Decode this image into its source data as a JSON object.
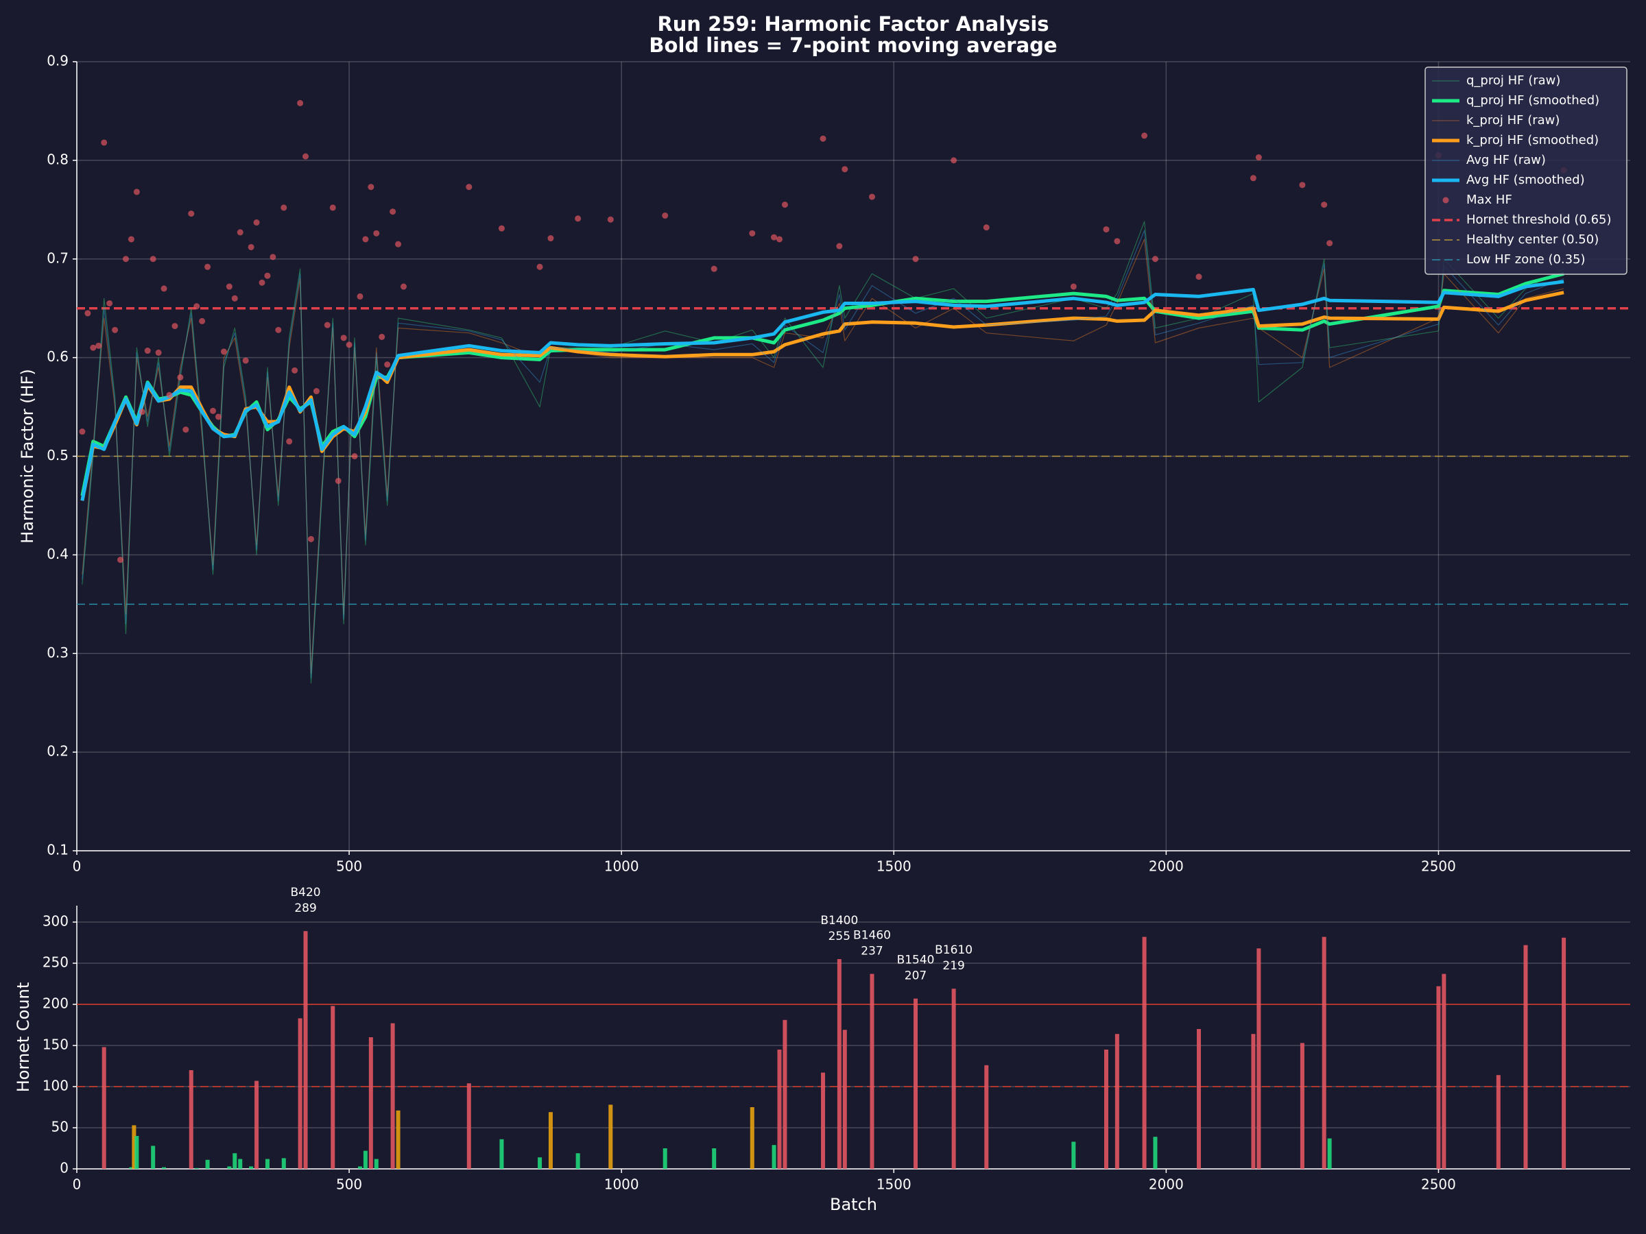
{
  "chart_data": [
    {
      "type": "line",
      "title": "Run 259: Harmonic Factor Analysis",
      "subtitle": "Bold lines = 7-point moving average",
      "ylabel": "Harmonic Factor (HF)",
      "xlim": [
        0,
        2852
      ],
      "ylim": [
        0.1,
        0.9
      ],
      "xticks": [
        0,
        500,
        1000,
        1500,
        2000,
        2500
      ],
      "yticks": [
        0.1,
        0.2,
        0.3,
        0.4,
        0.5,
        0.6,
        0.7,
        0.8,
        0.9
      ],
      "grid": "both",
      "legend": "upper right",
      "x": [
        10,
        30,
        50,
        70,
        90,
        110,
        130,
        150,
        170,
        190,
        210,
        230,
        250,
        270,
        290,
        310,
        330,
        350,
        370,
        390,
        410,
        430,
        450,
        470,
        490,
        510,
        530,
        550,
        570,
        590,
        720,
        780,
        850,
        870,
        920,
        980,
        1080,
        1170,
        1240,
        1280,
        1300,
        1370,
        1400,
        1410,
        1460,
        1540,
        1610,
        1670,
        1830,
        1890,
        1910,
        1960,
        1980,
        2060,
        2160,
        2170,
        2250,
        2290,
        2300,
        2500,
        2510,
        2610,
        2660,
        2730
      ],
      "series": [
        {
          "name": "q_proj HF (raw)",
          "color": "#2ecc71",
          "linewidth": 1.2,
          "opacity": 0.45,
          "values": [
            0.37,
            0.5,
            0.66,
            0.56,
            0.32,
            0.61,
            0.53,
            0.6,
            0.5,
            0.58,
            0.65,
            0.53,
            0.38,
            0.59,
            0.63,
            0.56,
            0.4,
            0.59,
            0.45,
            0.62,
            0.69,
            0.27,
            0.46,
            0.64,
            0.33,
            0.62,
            0.41,
            0.6,
            0.45,
            0.64,
            0.628,
            0.62,
            0.55,
            0.61,
            0.61,
            0.61,
            0.627,
            0.615,
            0.628,
            0.6,
            0.64,
            0.59,
            0.673,
            0.64,
            0.685,
            0.66,
            0.67,
            0.64,
            0.66,
            0.65,
            0.665,
            0.738,
            0.63,
            0.64,
            0.665,
            0.555,
            0.59,
            0.7,
            0.61,
            0.627,
            0.7,
            0.64,
            0.67,
            0.69
          ]
        },
        {
          "name": "q_proj HF (smoothed)",
          "color": "#1de987",
          "linewidth": 5,
          "opacity": 1,
          "values": [
            0.46,
            0.515,
            0.51,
            0.535,
            0.56,
            0.535,
            0.575,
            0.558,
            0.56,
            0.565,
            0.562,
            0.545,
            0.53,
            0.52,
            0.522,
            0.545,
            0.555,
            0.527,
            0.537,
            0.56,
            0.548,
            0.555,
            0.51,
            0.525,
            0.53,
            0.52,
            0.54,
            0.58,
            0.58,
            0.6,
            0.605,
            0.6,
            0.598,
            0.607,
            0.608,
            0.608,
            0.608,
            0.62,
            0.62,
            0.615,
            0.628,
            0.638,
            0.645,
            0.65,
            0.653,
            0.66,
            0.657,
            0.657,
            0.665,
            0.662,
            0.658,
            0.66,
            0.647,
            0.64,
            0.647,
            0.63,
            0.628,
            0.637,
            0.634,
            0.652,
            0.668,
            0.664,
            0.675,
            0.685
          ]
        },
        {
          "name": "k_proj HF (raw)",
          "color": "#e67e22",
          "linewidth": 1.2,
          "opacity": 0.45,
          "values": [
            0.38,
            0.51,
            0.64,
            0.55,
            0.34,
            0.6,
            0.54,
            0.59,
            0.51,
            0.59,
            0.64,
            0.52,
            0.39,
            0.6,
            0.62,
            0.55,
            0.41,
            0.58,
            0.46,
            0.61,
            0.68,
            0.28,
            0.47,
            0.63,
            0.34,
            0.61,
            0.42,
            0.61,
            0.46,
            0.63,
            0.625,
            0.615,
            0.6,
            0.61,
            0.605,
            0.6,
            0.6,
            0.6,
            0.6,
            0.59,
            0.625,
            0.62,
            0.655,
            0.617,
            0.66,
            0.63,
            0.65,
            0.625,
            0.617,
            0.633,
            0.655,
            0.72,
            0.615,
            0.63,
            0.64,
            0.63,
            0.6,
            0.69,
            0.59,
            0.64,
            0.685,
            0.625,
            0.66,
            0.67
          ]
        },
        {
          "name": "k_proj HF (smoothed)",
          "color": "#ff9f1c",
          "linewidth": 5,
          "opacity": 1,
          "values": [
            0.455,
            0.51,
            0.508,
            0.532,
            0.558,
            0.532,
            0.572,
            0.556,
            0.558,
            0.57,
            0.57,
            0.548,
            0.528,
            0.522,
            0.52,
            0.548,
            0.55,
            0.535,
            0.535,
            0.57,
            0.545,
            0.56,
            0.505,
            0.52,
            0.528,
            0.525,
            0.545,
            0.585,
            0.575,
            0.6,
            0.608,
            0.603,
            0.602,
            0.61,
            0.606,
            0.603,
            0.601,
            0.603,
            0.603,
            0.606,
            0.613,
            0.624,
            0.627,
            0.634,
            0.636,
            0.635,
            0.631,
            0.633,
            0.64,
            0.639,
            0.637,
            0.638,
            0.648,
            0.643,
            0.65,
            0.632,
            0.634,
            0.641,
            0.64,
            0.639,
            0.651,
            0.647,
            0.658,
            0.666
          ]
        },
        {
          "name": "Avg HF (raw)",
          "color": "#3498db",
          "linewidth": 1.2,
          "opacity": 0.45,
          "values": [
            0.375,
            0.505,
            0.65,
            0.555,
            0.33,
            0.605,
            0.535,
            0.595,
            0.505,
            0.585,
            0.645,
            0.525,
            0.385,
            0.595,
            0.625,
            0.555,
            0.405,
            0.585,
            0.455,
            0.615,
            0.685,
            0.275,
            0.465,
            0.635,
            0.335,
            0.615,
            0.415,
            0.605,
            0.455,
            0.635,
            0.627,
            0.618,
            0.575,
            0.61,
            0.608,
            0.605,
            0.614,
            0.608,
            0.614,
            0.595,
            0.633,
            0.605,
            0.664,
            0.628,
            0.673,
            0.645,
            0.66,
            0.633,
            0.638,
            0.642,
            0.66,
            0.729,
            0.623,
            0.635,
            0.653,
            0.593,
            0.595,
            0.695,
            0.6,
            0.634,
            0.693,
            0.633,
            0.665,
            0.68
          ]
        },
        {
          "name": "Avg HF (smoothed)",
          "color": "#1ab8f0",
          "linewidth": 5,
          "opacity": 1,
          "values": [
            0.455,
            0.512,
            0.507,
            0.535,
            0.558,
            0.533,
            0.574,
            0.556,
            0.56,
            0.567,
            0.566,
            0.545,
            0.528,
            0.52,
            0.521,
            0.546,
            0.552,
            0.53,
            0.535,
            0.565,
            0.546,
            0.557,
            0.507,
            0.522,
            0.53,
            0.522,
            0.55,
            0.585,
            0.578,
            0.602,
            0.612,
            0.607,
            0.605,
            0.615,
            0.613,
            0.612,
            0.614,
            0.615,
            0.62,
            0.624,
            0.636,
            0.646,
            0.648,
            0.655,
            0.655,
            0.657,
            0.653,
            0.652,
            0.66,
            0.656,
            0.653,
            0.656,
            0.664,
            0.662,
            0.669,
            0.648,
            0.654,
            0.66,
            0.658,
            0.656,
            0.666,
            0.662,
            0.672,
            0.677
          ]
        },
        {
          "name": "Max HF",
          "type": "scatter",
          "color": "#e05560",
          "opacity": 0.7,
          "x": [
            10,
            20,
            30,
            40,
            50,
            60,
            70,
            80,
            90,
            100,
            110,
            120,
            130,
            140,
            150,
            160,
            170,
            180,
            190,
            200,
            210,
            220,
            230,
            240,
            250,
            260,
            270,
            280,
            290,
            300,
            310,
            320,
            330,
            340,
            350,
            360,
            370,
            380,
            390,
            400,
            410,
            420,
            430,
            440,
            460,
            470,
            480,
            490,
            500,
            510,
            520,
            530,
            540,
            550,
            560,
            570,
            580,
            590,
            600,
            720,
            780,
            850,
            870,
            920,
            980,
            1080,
            1170,
            1240,
            1280,
            1290,
            1300,
            1370,
            1400,
            1410,
            1460,
            1540,
            1610,
            1670,
            1830,
            1890,
            1910,
            1960,
            1980,
            2060,
            2160,
            2170,
            2250,
            2290,
            2300,
            2500,
            2730
          ],
          "values": [
            0.525,
            0.645,
            0.61,
            0.612,
            0.818,
            0.655,
            0.628,
            0.395,
            0.7,
            0.72,
            0.768,
            0.545,
            0.607,
            0.7,
            0.605,
            0.67,
            0.562,
            0.632,
            0.58,
            0.527,
            0.746,
            0.652,
            0.637,
            0.692,
            0.546,
            0.54,
            0.606,
            0.672,
            0.66,
            0.727,
            0.597,
            0.712,
            0.737,
            0.676,
            0.683,
            0.702,
            0.628,
            0.752,
            0.515,
            0.587,
            0.858,
            0.804,
            0.416,
            0.566,
            0.633,
            0.752,
            0.475,
            0.62,
            0.613,
            0.5,
            0.662,
            0.72,
            0.773,
            0.726,
            0.621,
            0.593,
            0.748,
            0.715,
            0.672,
            0.773,
            0.731,
            0.692,
            0.721,
            0.741,
            0.74,
            0.744,
            0.69,
            0.726,
            0.722,
            0.72,
            0.755,
            0.822,
            0.713,
            0.791,
            0.763,
            0.7,
            0.8,
            0.732,
            0.672,
            0.73,
            0.718,
            0.825,
            0.7,
            0.682,
            0.782,
            0.803,
            0.775,
            0.755,
            0.716,
            0.805,
            0.79
          ]
        }
      ],
      "reference_lines": [
        {
          "name": "Hornet threshold (0.65)",
          "value": 0.65,
          "color": "#e0404a",
          "linestyle": "dashed",
          "linewidth": 3.5
        },
        {
          "name": "Healthy center (0.50)",
          "value": 0.5,
          "color": "#b8963a",
          "linestyle": "dashed",
          "linewidth": 1.5
        },
        {
          "name": "Low HF zone (0.35)",
          "value": 0.35,
          "color": "#2a8fa8",
          "linestyle": "dashed",
          "linewidth": 1.5
        }
      ]
    },
    {
      "type": "bar",
      "ylabel": "Hornet Count",
      "xlabel": "Batch",
      "xlim": [
        0,
        2852
      ],
      "ylim": [
        0,
        320
      ],
      "xticks": [
        0,
        500,
        1000,
        1500,
        2000,
        2500
      ],
      "yticks": [
        0,
        50,
        100,
        150,
        200,
        250,
        300
      ],
      "grid": "y",
      "x": [
        50,
        100,
        105,
        110,
        140,
        160,
        210,
        220,
        240,
        280,
        290,
        300,
        320,
        330,
        350,
        380,
        410,
        420,
        470,
        520,
        530,
        540,
        550,
        580,
        590,
        720,
        780,
        850,
        870,
        920,
        980,
        1080,
        1170,
        1240,
        1280,
        1290,
        1300,
        1370,
        1400,
        1410,
        1460,
        1540,
        1610,
        1670,
        1830,
        1890,
        1910,
        1960,
        1980,
        2060,
        2160,
        2170,
        2250,
        2290,
        2300,
        2500,
        2510,
        2610,
        2660,
        2730
      ],
      "values": [
        148,
        2,
        53,
        40,
        28,
        2,
        120,
        1,
        11,
        3,
        19,
        12,
        3,
        107,
        12,
        13,
        183,
        289,
        198,
        3,
        22,
        160,
        12,
        177,
        71,
        104,
        36,
        14,
        69,
        19,
        78,
        25,
        25,
        75,
        29,
        145,
        181,
        117,
        255,
        169,
        237,
        207,
        219,
        126,
        33,
        145,
        164,
        282,
        39,
        170,
        164,
        268,
        153,
        282,
        37,
        222,
        237,
        114,
        272,
        281
      ],
      "colors": [
        "#e05560",
        "#1fd67a",
        "#e5a010",
        "#1fd67a",
        "#1fd67a",
        "#1fd67a",
        "#e05560",
        "#1fd67a",
        "#1fd67a",
        "#1fd67a",
        "#1fd67a",
        "#1fd67a",
        "#1fd67a",
        "#e05560",
        "#1fd67a",
        "#1fd67a",
        "#e05560",
        "#e05560",
        "#e05560",
        "#1fd67a",
        "#1fd67a",
        "#e05560",
        "#1fd67a",
        "#e05560",
        "#e5a010",
        "#e05560",
        "#1fd67a",
        "#1fd67a",
        "#e5a010",
        "#1fd67a",
        "#e5a010",
        "#1fd67a",
        "#1fd67a",
        "#e5a010",
        "#1fd67a",
        "#e05560",
        "#e05560",
        "#e05560",
        "#e05560",
        "#e05560",
        "#e05560",
        "#e05560",
        "#e05560",
        "#e05560",
        "#1fd67a",
        "#e05560",
        "#e05560",
        "#e05560",
        "#1fd67a",
        "#e05560",
        "#e05560",
        "#e05560",
        "#e05560",
        "#e05560",
        "#1fd67a",
        "#e05560",
        "#e05560",
        "#e05560",
        "#e05560",
        "#e05560"
      ],
      "hlines": [
        {
          "value": 200,
          "color": "#c0392b",
          "linestyle": "solid"
        },
        {
          "value": 100,
          "color": "#c0392b",
          "linestyle": "dashed"
        }
      ],
      "annotations": [
        {
          "x": 420,
          "label": "B420",
          "value": 289
        },
        {
          "x": 1400,
          "label": "B1400",
          "value": 255
        },
        {
          "x": 1460,
          "label": "B1460",
          "value": 237
        },
        {
          "x": 1540,
          "label": "B1540",
          "value": 207
        },
        {
          "x": 1610,
          "label": "B1610",
          "value": 219
        }
      ]
    }
  ]
}
